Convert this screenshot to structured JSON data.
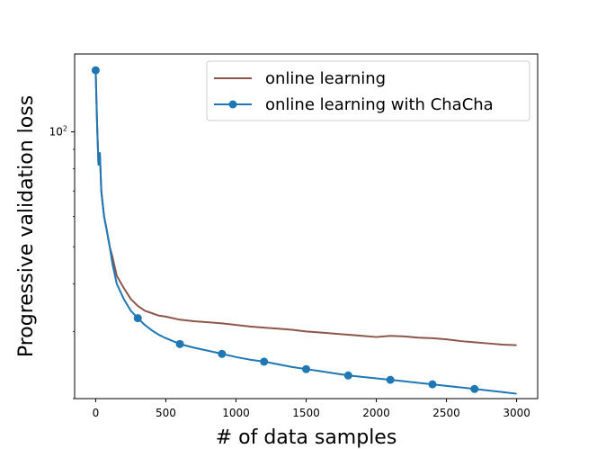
{
  "chart_data": {
    "type": "line",
    "xlabel": "# of data samples",
    "ylabel": "Progressive validation loss",
    "xlim": [
      -150,
      3150
    ],
    "ylim": [
      20,
      160
    ],
    "yscale": "log",
    "x_ticks": [
      0,
      500,
      1000,
      1500,
      2000,
      2500,
      3000
    ],
    "x_tick_labels": [
      "0",
      "500",
      "1000",
      "1500",
      "2000",
      "2500",
      "3000"
    ],
    "y_ticks": [
      100
    ],
    "y_tick_label": {
      "base": "10",
      "exponent": "2"
    },
    "legend": {
      "position": "top-right",
      "entries": [
        "online learning",
        "online learning with ChaCha"
      ]
    },
    "series": [
      {
        "name": "online learning",
        "color": "#8c564b",
        "marker": "none",
        "x": [
          0,
          10,
          20,
          30,
          40,
          60,
          80,
          100,
          120,
          150,
          200,
          250,
          300,
          350,
          400,
          450,
          500,
          600,
          700,
          800,
          900,
          1000,
          1100,
          1200,
          1300,
          1400,
          1500,
          1600,
          1700,
          1800,
          1900,
          2000,
          2100,
          2200,
          2300,
          2400,
          2500,
          2600,
          2700,
          2800,
          2900,
          3000
        ],
        "y": [
          145,
          105,
          82,
          88,
          70,
          60,
          55,
          50,
          47,
          42,
          39,
          36.5,
          35,
          34,
          33.5,
          33,
          32.8,
          32.2,
          31.9,
          31.7,
          31.5,
          31.2,
          30.9,
          30.7,
          30.5,
          30.3,
          30.0,
          29.8,
          29.6,
          29.4,
          29.2,
          29.0,
          29.2,
          29.1,
          28.9,
          28.8,
          28.6,
          28.3,
          28.1,
          27.9,
          27.7,
          27.6
        ]
      },
      {
        "name": "online learning with ChaCha",
        "color": "#1f77b4",
        "marker": "circle",
        "x": [
          0,
          10,
          20,
          30,
          40,
          60,
          80,
          100,
          120,
          150,
          200,
          250,
          300,
          350,
          400,
          450,
          500,
          600,
          700,
          800,
          900,
          1000,
          1100,
          1200,
          1300,
          1400,
          1500,
          1600,
          1700,
          1800,
          1900,
          2000,
          2100,
          2200,
          2300,
          2400,
          2500,
          2600,
          2700,
          2800,
          2900,
          3000
        ],
        "y": [
          145,
          105,
          82,
          88,
          70,
          60,
          55,
          50,
          45,
          40,
          36.5,
          34,
          32.5,
          31.2,
          30.2,
          29.4,
          28.8,
          27.8,
          27.2,
          26.7,
          26.2,
          25.7,
          25.3,
          25.0,
          24.6,
          24.2,
          23.9,
          23.6,
          23.3,
          23.0,
          22.8,
          22.6,
          22.4,
          22.2,
          22.0,
          21.8,
          21.6,
          21.4,
          21.2,
          21.0,
          20.8,
          20.6
        ],
        "marker_x": [
          0,
          300,
          600,
          900,
          1200,
          1500,
          1800,
          2100,
          2400,
          2700
        ],
        "marker_y": [
          145,
          32.5,
          27.8,
          26.2,
          25.0,
          23.9,
          23.0,
          22.4,
          21.8,
          21.2
        ]
      }
    ]
  }
}
